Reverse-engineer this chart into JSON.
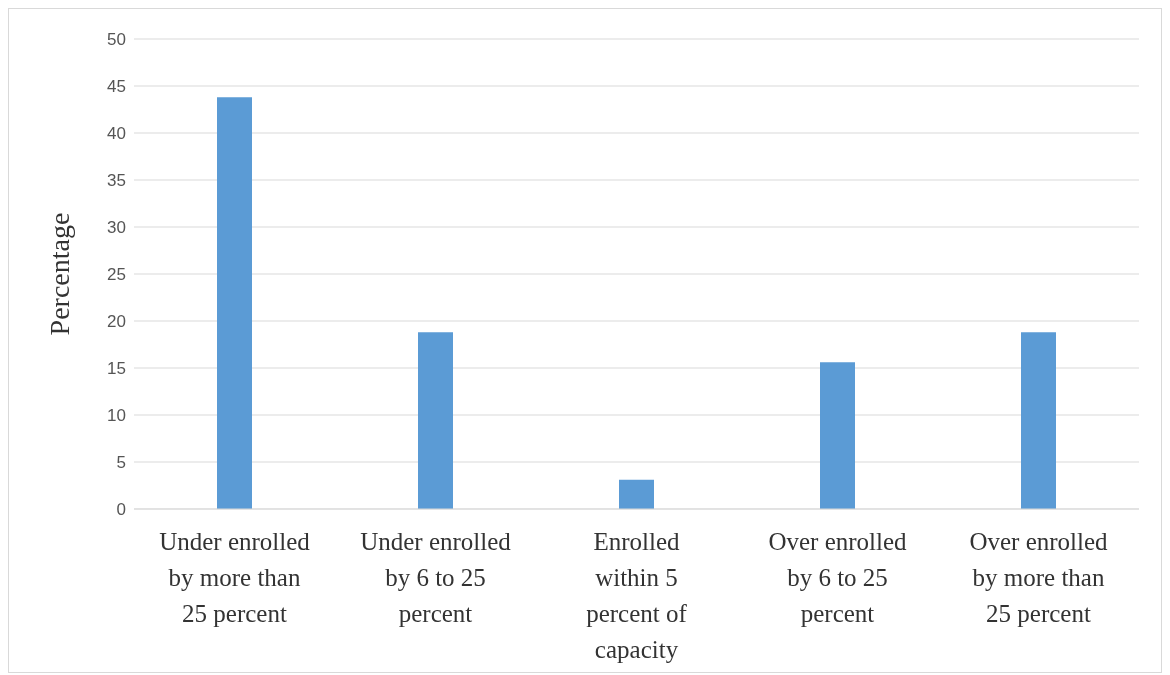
{
  "chart_data": {
    "type": "bar",
    "ylabel": "Percentage",
    "categories": [
      "Under enrolled by more than 25 percent",
      "Under enrolled by 6 to 25 percent",
      "Enrolled within 5 percent of capacity",
      "Over enrolled by 6 to 25 percent",
      "Over enrolled by more than 25 percent"
    ],
    "values": [
      43.8,
      18.8,
      3.1,
      15.6,
      18.8
    ],
    "color": "#5b9bd5",
    "ylim": [
      0,
      50
    ],
    "yticks": [
      0,
      5,
      10,
      15,
      20,
      25,
      30,
      35,
      40,
      45,
      50
    ],
    "grid": "y"
  }
}
